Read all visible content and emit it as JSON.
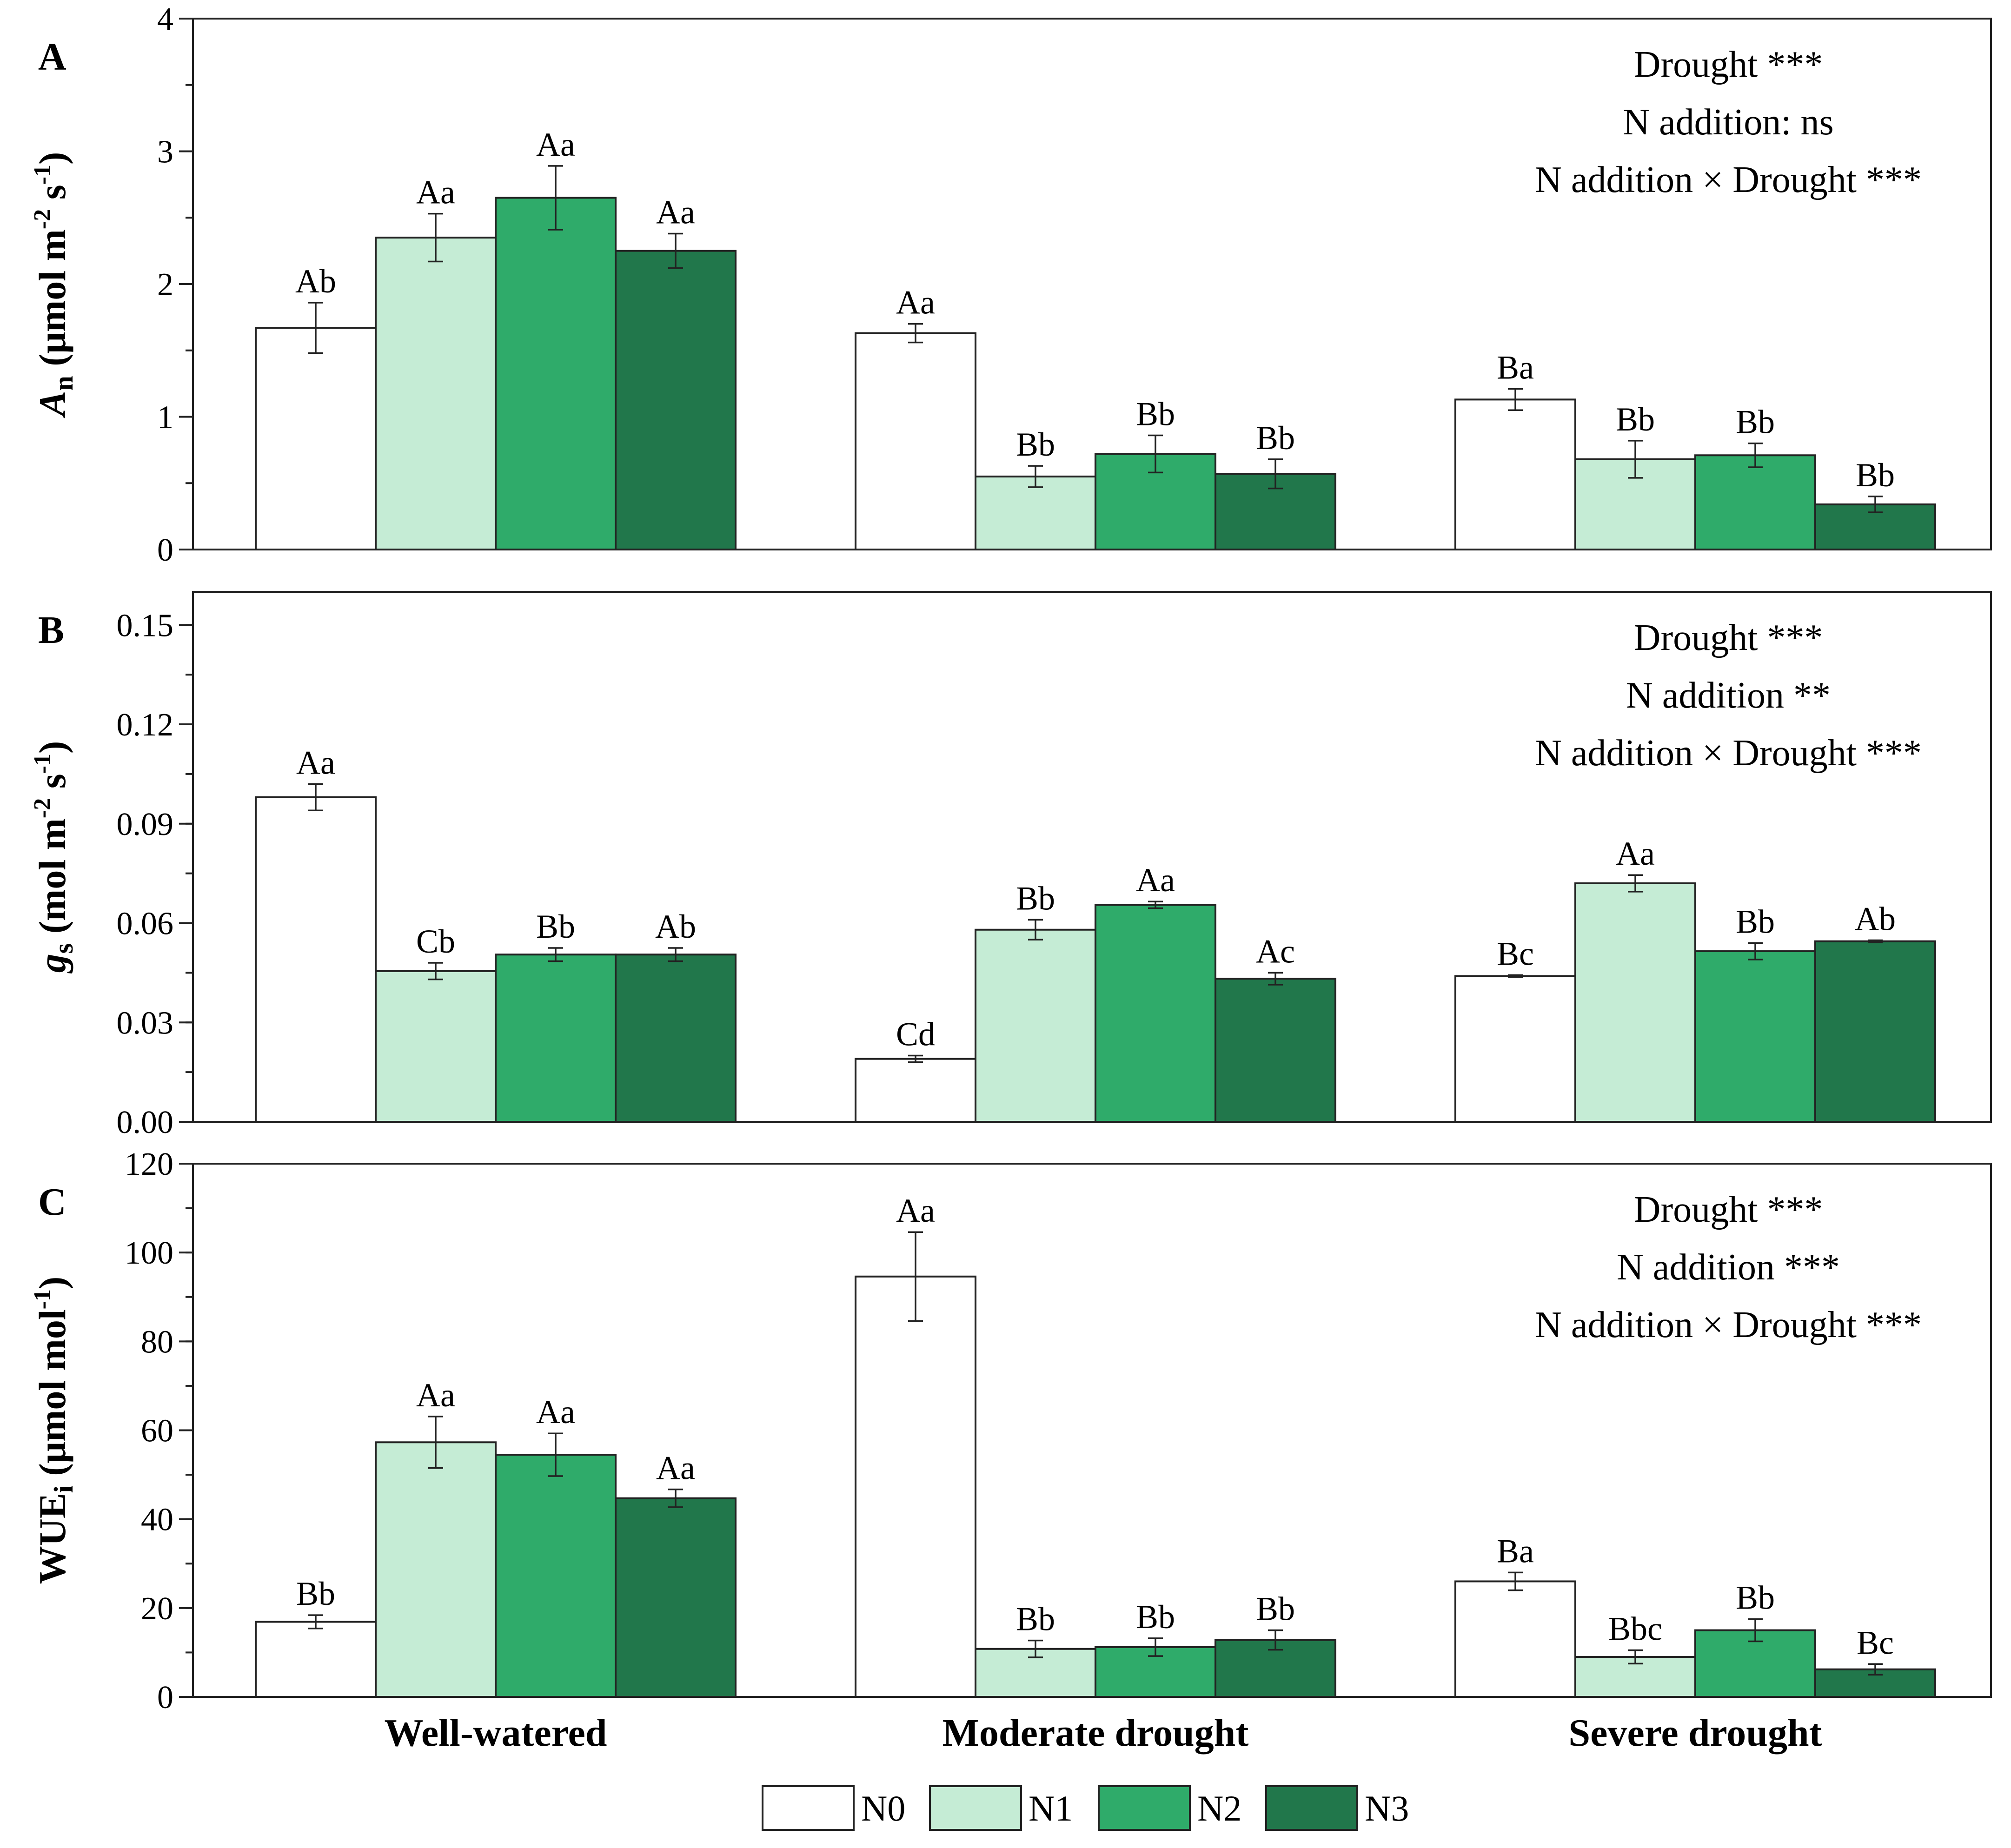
{
  "chart_data": {
    "type": "bar",
    "categories": [
      "Well-watered",
      "Moderate drought",
      "Severe drought"
    ],
    "legend": {
      "entries": [
        {
          "name": "N0",
          "color": "#ffffff"
        },
        {
          "name": "N1",
          "color": "#c5ecd5"
        },
        {
          "name": "N2",
          "color": "#2fab6a"
        },
        {
          "name": "N3",
          "color": "#21774b"
        }
      ],
      "placement": "bottom-center"
    },
    "panels": [
      {
        "letter": "A",
        "ylabel": {
          "main": "A",
          "sub": "n",
          "unit_base": " (μmol m",
          "exp1": "-2",
          "mid": " s",
          "exp2": "-1",
          "end": ")"
        },
        "ylim": [
          0,
          4
        ],
        "major_ticks": [
          0,
          1,
          2,
          3,
          4
        ],
        "tick_labels": [
          "0",
          "1",
          "2",
          "3",
          "4"
        ],
        "minor_step": 0.5,
        "significance": [
          "Drought ***",
          "N addition: ns",
          "N addition × Drought ***"
        ],
        "series": [
          {
            "name": "N0",
            "values": [
              1.67,
              1.63,
              1.13
            ],
            "errors": [
              0.19,
              0.07,
              0.08
            ],
            "labels": [
              "Ab",
              "Aa",
              "Ba"
            ]
          },
          {
            "name": "N1",
            "values": [
              2.35,
              0.55,
              0.68
            ],
            "errors": [
              0.18,
              0.08,
              0.14
            ],
            "labels": [
              "Aa",
              "Bb",
              "Bb"
            ]
          },
          {
            "name": "N2",
            "values": [
              2.65,
              0.72,
              0.71
            ],
            "errors": [
              0.24,
              0.14,
              0.09
            ],
            "labels": [
              "Aa",
              "Bb",
              "Bb"
            ]
          },
          {
            "name": "N3",
            "values": [
              2.25,
              0.57,
              0.34
            ],
            "errors": [
              0.13,
              0.11,
              0.06
            ],
            "labels": [
              "Aa",
              "Bb",
              "Bb"
            ]
          }
        ]
      },
      {
        "letter": "B",
        "ylabel": {
          "main": "g",
          "sub": "s",
          "unit_base": " (mol m",
          "exp1": "-2",
          "mid": " s",
          "exp2": "-1",
          "end": ")"
        },
        "ylim": [
          0,
          0.16
        ],
        "major_ticks": [
          0,
          0.03,
          0.06,
          0.09,
          0.12,
          0.15
        ],
        "tick_labels": [
          "0.00",
          "0.03",
          "0.06",
          "0.09",
          "0.12",
          "0.15"
        ],
        "minor_step": 0.015,
        "significance": [
          "Drought ***",
          "N addition **",
          "N addition × Drought ***"
        ],
        "series": [
          {
            "name": "N0",
            "values": [
              0.098,
              0.019,
              0.044
            ],
            "errors": [
              0.004,
              0.001,
              0.0003
            ],
            "labels": [
              "Aa",
              "Cd",
              "Bc"
            ]
          },
          {
            "name": "N1",
            "values": [
              0.0455,
              0.058,
              0.072
            ],
            "errors": [
              0.0025,
              0.003,
              0.0025
            ],
            "labels": [
              "Cb",
              "Bb",
              "Aa"
            ]
          },
          {
            "name": "N2",
            "values": [
              0.0505,
              0.0655,
              0.0515
            ],
            "errors": [
              0.002,
              0.001,
              0.0025
            ],
            "labels": [
              "Bb",
              "Aa",
              "Bb"
            ]
          },
          {
            "name": "N3",
            "values": [
              0.0505,
              0.0432,
              0.0545
            ],
            "errors": [
              0.002,
              0.0018,
              0.0003
            ],
            "labels": [
              "Ab",
              "Ac",
              "Ab"
            ]
          }
        ]
      },
      {
        "letter": "C",
        "ylabel": {
          "main": "WUE",
          "sub": "i",
          "unit_base": " (μmol mol",
          "exp1": "-1",
          "mid": "",
          "exp2": "",
          "end": ")"
        },
        "ylim": [
          0,
          120
        ],
        "major_ticks": [
          0,
          20,
          40,
          60,
          80,
          100,
          120
        ],
        "tick_labels": [
          "0",
          "20",
          "40",
          "60",
          "80",
          "100",
          "120"
        ],
        "minor_step": 10,
        "significance": [
          "Drought ***",
          "N addition ***",
          "N addition × Drought ***"
        ],
        "series": [
          {
            "name": "N0",
            "values": [
              16.9,
              94.6,
              26.0
            ],
            "errors": [
              1.5,
              10.0,
              2.0
            ],
            "labels": [
              "Bb",
              "Aa",
              "Ba"
            ]
          },
          {
            "name": "N1",
            "values": [
              57.3,
              10.8,
              9.0
            ],
            "errors": [
              5.8,
              1.9,
              1.5
            ],
            "labels": [
              "Aa",
              "Bb",
              "Bbc"
            ]
          },
          {
            "name": "N2",
            "values": [
              54.5,
              11.2,
              15.0
            ],
            "errors": [
              4.8,
              2.0,
              2.5
            ],
            "labels": [
              "Aa",
              "Bb",
              "Bb"
            ]
          },
          {
            "name": "N3",
            "values": [
              44.7,
              12.8,
              6.2
            ],
            "errors": [
              2.0,
              2.2,
              1.2
            ],
            "labels": [
              "Aa",
              "Bb",
              "Bc"
            ]
          }
        ]
      }
    ]
  }
}
